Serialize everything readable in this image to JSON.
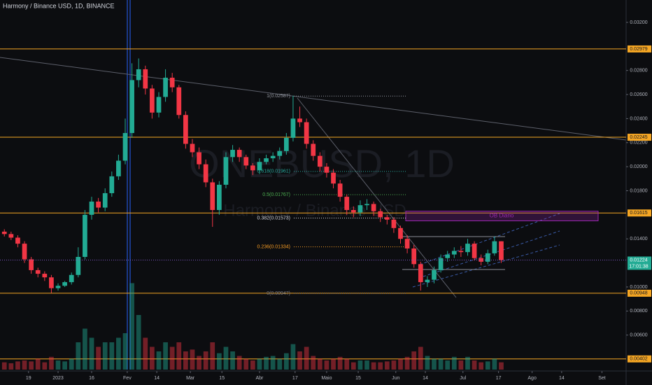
{
  "chart_data": {
    "type": "candlestick",
    "title": "Harmony / Binance USD, 1D, BINANCE",
    "watermark": [
      "ONEBUSD, 1D",
      "Harmony / Binance USD"
    ],
    "ylim": [
      0.00313,
      0.03386
    ],
    "yticks": [
      {
        "value": 0.032,
        "label": "0.03200"
      },
      {
        "value": 0.028,
        "label": "0.02800"
      },
      {
        "value": 0.026,
        "label": "0.02600"
      },
      {
        "value": 0.024,
        "label": "0.02400"
      },
      {
        "value": 0.022,
        "label": "0.02200"
      },
      {
        "value": 0.02,
        "label": "0.02000"
      },
      {
        "value": 0.018,
        "label": "0.01800"
      },
      {
        "value": 0.014,
        "label": "0.01400"
      },
      {
        "value": 0.01,
        "label": "0.01000"
      },
      {
        "value": 0.008,
        "label": "0.00800"
      },
      {
        "value": 0.006,
        "label": "0.00600"
      }
    ],
    "xlim": [
      -0.65,
      92.6
    ],
    "xticks": [
      {
        "value": 3.6,
        "label": "19"
      },
      {
        "value": 8,
        "label": "2023"
      },
      {
        "value": 13,
        "label": "16"
      },
      {
        "value": 18.3,
        "label": "Fev"
      },
      {
        "value": 22.7,
        "label": "14"
      },
      {
        "value": 27.7,
        "label": "Mar"
      },
      {
        "value": 32.4,
        "label": "15"
      },
      {
        "value": 38,
        "label": "Abr"
      },
      {
        "value": 43.3,
        "label": "17"
      },
      {
        "value": 48,
        "label": "Maio"
      },
      {
        "value": 52.7,
        "label": "15"
      },
      {
        "value": 58.3,
        "label": "Jun"
      },
      {
        "value": 62.7,
        "label": "14"
      },
      {
        "value": 68.3,
        "label": "Jul"
      },
      {
        "value": 73.6,
        "label": "17"
      },
      {
        "value": 78.6,
        "label": "Ago"
      },
      {
        "value": 83,
        "label": "14"
      },
      {
        "value": 89,
        "label": "Set"
      }
    ],
    "up_color": "#22ab94",
    "down_color": "#f23645",
    "open": [
      0.0146,
      0.0144,
      0.0141,
      0.0136,
      0.0123,
      0.0114,
      0.0111,
      0.0108,
      0.0099,
      0.0101,
      0.0104,
      0.011,
      0.0125,
      0.016,
      0.0171,
      0.0166,
      0.0178,
      0.0192,
      0.0205,
      0.0228,
      0.0272,
      0.0281,
      0.0265,
      0.0245,
      0.0258,
      0.0274,
      0.0266,
      0.0243,
      0.0219,
      0.0212,
      0.0202,
      0.0187,
      0.0164,
      0.0185,
      0.0208,
      0.0214,
      0.0208,
      0.0201,
      0.0197,
      0.0204,
      0.0207,
      0.0209,
      0.0213,
      0.0224,
      0.024,
      0.0237,
      0.0219,
      0.0209,
      0.02,
      0.0195,
      0.0186,
      0.0175,
      0.0164,
      0.0162,
      0.0168,
      0.0169,
      0.0163,
      0.0158,
      0.0156,
      0.0149,
      0.014,
      0.0132,
      0.0119,
      0.0104,
      0.0106,
      0.0114,
      0.0124,
      0.0127,
      0.013,
      0.0129,
      0.0136,
      0.0124,
      0.0121,
      0.0128,
      0.0138
    ],
    "high": [
      0.0148,
      0.0146,
      0.0143,
      0.0138,
      0.0125,
      0.0116,
      0.0113,
      0.011,
      0.0103,
      0.0105,
      0.0112,
      0.0133,
      0.0164,
      0.0175,
      0.0174,
      0.0182,
      0.0196,
      0.021,
      0.024,
      0.0286,
      0.029,
      0.0284,
      0.0268,
      0.0262,
      0.0281,
      0.0278,
      0.0268,
      0.0246,
      0.0223,
      0.0216,
      0.0206,
      0.019,
      0.0188,
      0.0212,
      0.0218,
      0.0216,
      0.021,
      0.0203,
      0.0207,
      0.021,
      0.0212,
      0.0216,
      0.0228,
      0.0259,
      0.025,
      0.024,
      0.0222,
      0.0212,
      0.0203,
      0.0198,
      0.0189,
      0.0177,
      0.0167,
      0.0172,
      0.0173,
      0.0171,
      0.0165,
      0.016,
      0.0158,
      0.0151,
      0.0143,
      0.0135,
      0.0121,
      0.0109,
      0.0117,
      0.0127,
      0.013,
      0.0133,
      0.0134,
      0.014,
      0.0138,
      0.0127,
      0.0131,
      0.0142,
      0.0138
    ],
    "low": [
      0.0142,
      0.0139,
      0.0133,
      0.012,
      0.0111,
      0.0108,
      0.0105,
      0.0095,
      0.0097,
      0.01,
      0.0102,
      0.0108,
      0.0123,
      0.0156,
      0.0162,
      0.0163,
      0.0175,
      0.0189,
      0.0202,
      0.0224,
      0.0266,
      0.026,
      0.024,
      0.0241,
      0.0254,
      0.0262,
      0.024,
      0.0215,
      0.0208,
      0.0198,
      0.0183,
      0.015,
      0.016,
      0.0182,
      0.0204,
      0.0204,
      0.0198,
      0.0193,
      0.0194,
      0.0202,
      0.0204,
      0.0206,
      0.021,
      0.0221,
      0.0233,
      0.0215,
      0.0205,
      0.0196,
      0.0191,
      0.0182,
      0.0171,
      0.016,
      0.0158,
      0.0159,
      0.0164,
      0.0159,
      0.0154,
      0.0152,
      0.0145,
      0.0136,
      0.0128,
      0.0116,
      0.0097,
      0.01,
      0.0103,
      0.0112,
      0.0121,
      0.0124,
      0.0125,
      0.0126,
      0.0122,
      0.0118,
      0.0119,
      0.0126,
      0.012
    ],
    "close": [
      0.0144,
      0.0141,
      0.0136,
      0.0123,
      0.0114,
      0.0111,
      0.0108,
      0.0099,
      0.0101,
      0.0104,
      0.011,
      0.0125,
      0.016,
      0.0171,
      0.0166,
      0.0178,
      0.0192,
      0.0205,
      0.0228,
      0.0272,
      0.0281,
      0.0265,
      0.0245,
      0.0258,
      0.0274,
      0.0266,
      0.0243,
      0.0219,
      0.0212,
      0.0202,
      0.0187,
      0.0164,
      0.0185,
      0.0208,
      0.0214,
      0.0208,
      0.0201,
      0.0197,
      0.0204,
      0.0207,
      0.0209,
      0.0213,
      0.0224,
      0.024,
      0.0237,
      0.0219,
      0.0209,
      0.02,
      0.0195,
      0.0186,
      0.0175,
      0.0164,
      0.0162,
      0.0168,
      0.0169,
      0.0163,
      0.0158,
      0.0156,
      0.0149,
      0.014,
      0.0132,
      0.0119,
      0.0104,
      0.0106,
      0.0114,
      0.0124,
      0.0127,
      0.013,
      0.0129,
      0.0136,
      0.0124,
      0.0121,
      0.0128,
      0.0138,
      0.01224
    ],
    "volume": [
      8,
      7,
      9,
      10,
      9,
      12,
      8,
      14,
      10,
      9,
      12,
      30,
      45,
      35,
      25,
      30,
      30,
      35,
      40,
      95,
      60,
      35,
      25,
      20,
      30,
      25,
      30,
      20,
      22,
      15,
      20,
      30,
      18,
      25,
      20,
      15,
      12,
      10,
      12,
      14,
      15,
      12,
      18,
      28,
      20,
      25,
      15,
      12,
      10,
      12,
      14,
      12,
      8,
      10,
      10,
      8,
      8,
      9,
      10,
      12,
      14,
      20,
      25,
      15,
      12,
      12,
      10,
      14,
      10,
      14,
      10,
      8,
      9,
      12,
      8
    ],
    "vlim": [
      0,
      100
    ],
    "levels": [
      0.02979,
      0.02245,
      0.01615,
      0.00948,
      0.00402
    ],
    "level_color": "#f5a623",
    "last_price": 0.01224,
    "countdown": "17:01:38",
    "fib": [
      {
        "value": 0.02587,
        "label": "1(0.02587)",
        "color": "#9598a1"
      },
      {
        "value": 0.01961,
        "label": "0.618(0.01961)",
        "color": "#26a69a"
      },
      {
        "value": 0.01767,
        "label": "0.5(0.01767)",
        "color": "#4caf50"
      },
      {
        "value": 0.01573,
        "label": "0.382(0.01573)",
        "color": "#d1d4dc"
      },
      {
        "value": 0.01334,
        "label": "0.236(0.01334)",
        "color": "#f59b23"
      },
      {
        "value": 0.00947,
        "label": "0(0.00947)",
        "color": "#787b86"
      }
    ],
    "zone": {
      "label": "OB Diario",
      "top": 0.0163,
      "bottom": 0.0155,
      "color": "#9c27b0"
    }
  }
}
